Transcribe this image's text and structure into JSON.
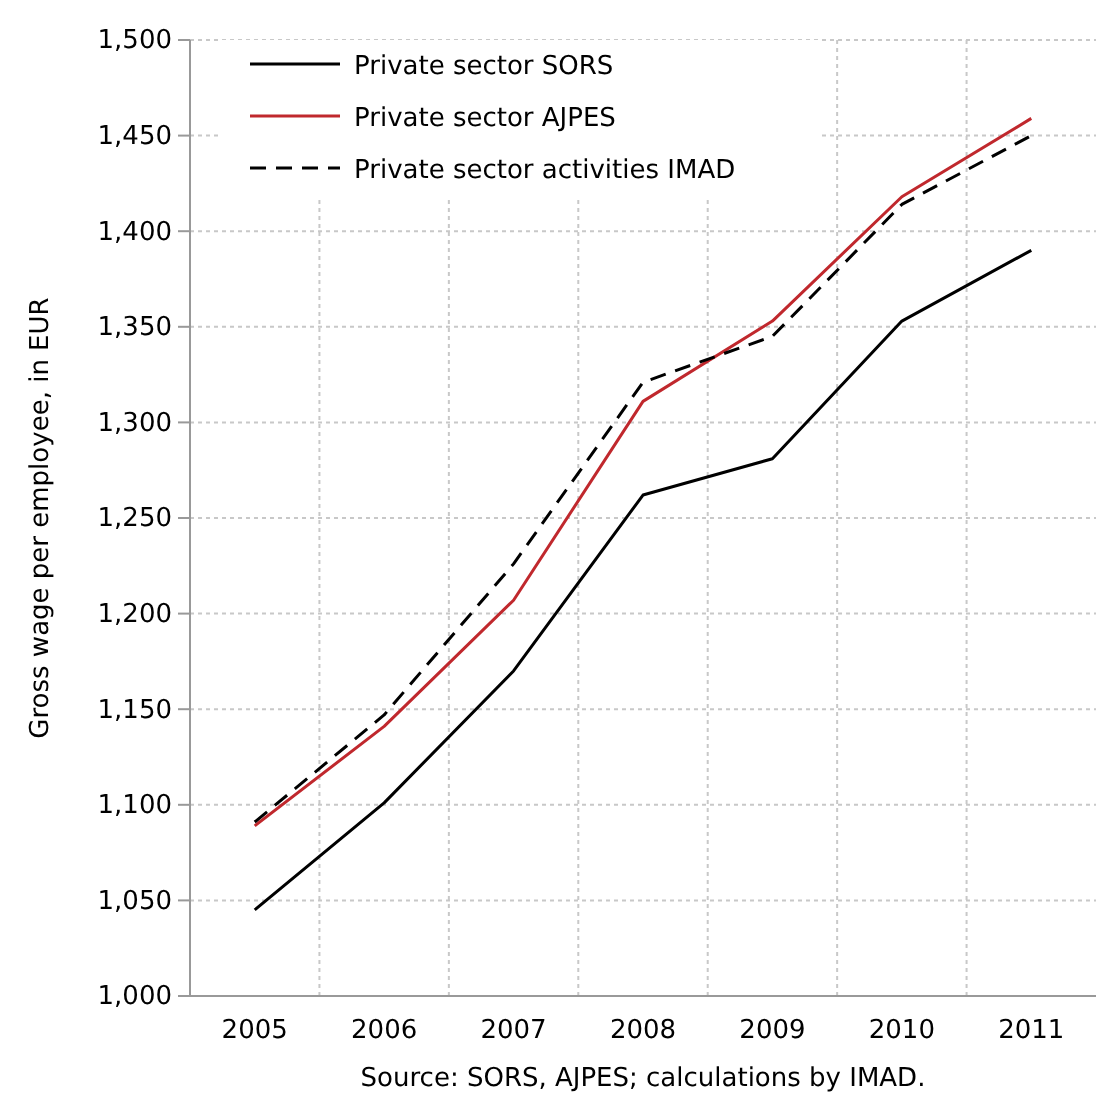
{
  "chart_data": {
    "type": "line",
    "ylabel": "Gross wage per employee, in EUR",
    "categories": [
      "2005",
      "2006",
      "2007",
      "2008",
      "2009",
      "2010",
      "2011"
    ],
    "series": [
      {
        "name": "Private sector SORS",
        "color": "#000000",
        "values": [
          1045,
          1101,
          1170,
          1262,
          1281,
          1353,
          1390
        ],
        "line_style": "solid"
      },
      {
        "name": "Private sector AJPES",
        "color": "#c0282d",
        "values": [
          1089,
          1141,
          1207,
          1311,
          1353,
          1418,
          1459
        ],
        "line_style": "solid"
      },
      {
        "name": "Private sector activities IMAD",
        "color": "#000000",
        "values": [
          1091,
          1147,
          1226,
          1321,
          1345,
          1414,
          1450
        ],
        "line_style": "dashed"
      }
    ],
    "ylim": [
      1000,
      1500
    ],
    "yticks": [
      {
        "value": 1000,
        "label": "1,000"
      },
      {
        "value": 1050,
        "label": "1,050"
      },
      {
        "value": 1100,
        "label": "1,100"
      },
      {
        "value": 1150,
        "label": "1,150"
      },
      {
        "value": 1200,
        "label": "1,200"
      },
      {
        "value": 1250,
        "label": "1,250"
      },
      {
        "value": 1300,
        "label": "1,300"
      },
      {
        "value": 1350,
        "label": "1,350"
      },
      {
        "value": 1400,
        "label": "1,400"
      },
      {
        "value": 1450,
        "label": "1,450"
      },
      {
        "value": 1500,
        "label": "1,500"
      }
    ],
    "grid": true,
    "legend": "top left",
    "marker": "none",
    "annotations": [
      "Source: SORS, AJPES; calculations by IMAD."
    ]
  }
}
